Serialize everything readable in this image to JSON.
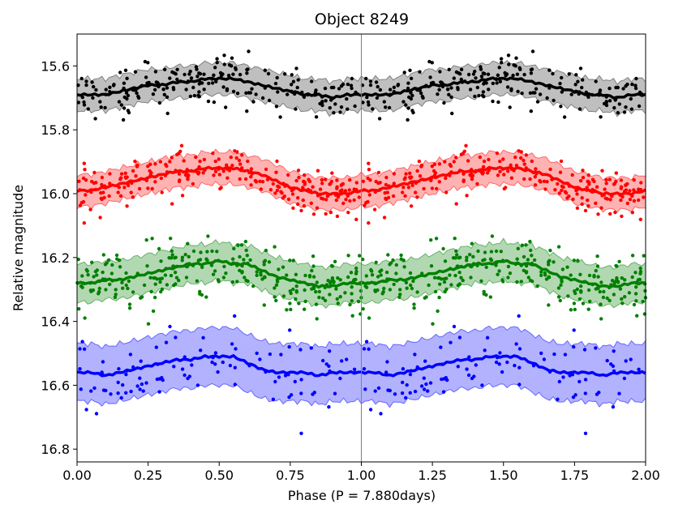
{
  "chart_data": {
    "type": "scatter",
    "title": "Object 8249",
    "xlabel": "Phase (P = 7.880days)",
    "ylabel": "Relative magnitude",
    "xlim": [
      0,
      2
    ],
    "ylim": [
      16.84,
      15.5
    ],
    "y_inverted": true,
    "grid": false,
    "x_ticks": [
      0.0,
      0.25,
      0.5,
      0.75,
      1.0,
      1.25,
      1.5,
      1.75,
      2.0
    ],
    "x_tick_labels": [
      "0.00",
      "0.25",
      "0.50",
      "0.75",
      "1.00",
      "1.25",
      "1.50",
      "1.75",
      "2.00"
    ],
    "y_ticks": [
      15.6,
      15.8,
      16.0,
      16.2,
      16.4,
      16.6,
      16.8
    ],
    "y_tick_labels": [
      "15.6",
      "15.8",
      "16.0",
      "16.2",
      "16.4",
      "16.6",
      "16.8"
    ],
    "phase_marker": 1.0,
    "series": [
      {
        "color": "#000000",
        "band_color": "#808080",
        "trend_phase": [
          0.0,
          0.05,
          0.1,
          0.15,
          0.2,
          0.25,
          0.3,
          0.35,
          0.4,
          0.45,
          0.5,
          0.55,
          0.6,
          0.65,
          0.7,
          0.75,
          0.8,
          0.85,
          0.9,
          0.95,
          1.0
        ],
        "trend_mag": [
          15.69,
          15.69,
          15.69,
          15.68,
          15.67,
          15.66,
          15.66,
          15.65,
          15.65,
          15.64,
          15.64,
          15.64,
          15.65,
          15.66,
          15.67,
          15.68,
          15.69,
          15.69,
          15.7,
          15.69,
          15.69
        ],
        "band_halfwidth": 0.05,
        "scatter_sigma": 0.035,
        "points_per_phase": 200
      },
      {
        "color": "#ff0000",
        "band_color": "#ff6666",
        "trend_phase": [
          0.0,
          0.05,
          0.1,
          0.15,
          0.2,
          0.25,
          0.3,
          0.35,
          0.4,
          0.45,
          0.5,
          0.55,
          0.6,
          0.65,
          0.7,
          0.75,
          0.8,
          0.85,
          0.9,
          0.95,
          1.0
        ],
        "trend_mag": [
          15.99,
          15.99,
          15.98,
          15.97,
          15.96,
          15.95,
          15.94,
          15.93,
          15.93,
          15.92,
          15.92,
          15.92,
          15.93,
          15.94,
          15.96,
          15.98,
          15.99,
          16.0,
          16.0,
          16.0,
          15.99
        ],
        "band_halfwidth": 0.05,
        "scatter_sigma": 0.035,
        "points_per_phase": 230
      },
      {
        "color": "#008000",
        "band_color": "#66b266",
        "trend_phase": [
          0.0,
          0.05,
          0.1,
          0.15,
          0.2,
          0.25,
          0.3,
          0.35,
          0.4,
          0.45,
          0.5,
          0.55,
          0.6,
          0.65,
          0.7,
          0.75,
          0.8,
          0.85,
          0.9,
          0.95,
          1.0
        ],
        "trend_mag": [
          16.28,
          16.28,
          16.27,
          16.27,
          16.26,
          16.25,
          16.24,
          16.23,
          16.22,
          16.22,
          16.21,
          16.22,
          16.22,
          16.24,
          16.26,
          16.27,
          16.28,
          16.29,
          16.29,
          16.28,
          16.28
        ],
        "band_halfwidth": 0.06,
        "scatter_sigma": 0.05,
        "points_per_phase": 260
      },
      {
        "color": "#0000ff",
        "band_color": "#6666ff",
        "trend_phase": [
          0.0,
          0.05,
          0.1,
          0.15,
          0.2,
          0.25,
          0.3,
          0.35,
          0.4,
          0.45,
          0.5,
          0.55,
          0.6,
          0.65,
          0.7,
          0.75,
          0.8,
          0.85,
          0.9,
          0.95,
          1.0
        ],
        "trend_mag": [
          16.56,
          16.56,
          16.57,
          16.56,
          16.55,
          16.54,
          16.53,
          16.52,
          16.52,
          16.51,
          16.51,
          16.51,
          16.53,
          16.55,
          16.56,
          16.56,
          16.56,
          16.57,
          16.56,
          16.56,
          16.56
        ],
        "band_halfwidth": 0.09,
        "scatter_sigma": 0.06,
        "points_per_phase": 100
      }
    ]
  }
}
